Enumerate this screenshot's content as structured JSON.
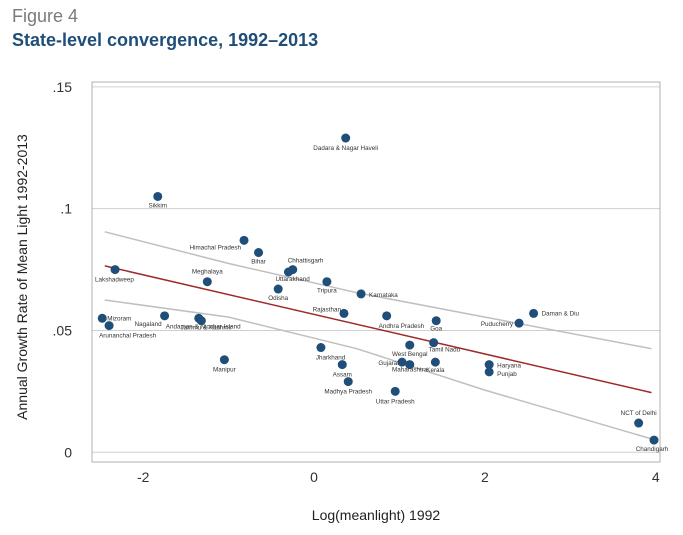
{
  "figure_label": "Figure 4",
  "title": "State-level convergence, 1992–2013",
  "chart_data": {
    "type": "scatter",
    "xlabel": "Log(meanlight) 1992",
    "ylabel": "Annual Growth Rate of Mean Light 1992-2013",
    "xlim": [
      -2.6,
      4.05
    ],
    "ylim": [
      -0.004,
      0.152
    ],
    "xticks": [
      {
        "v": -2,
        "label": "-2"
      },
      {
        "v": 0,
        "label": "0"
      },
      {
        "v": 2,
        "label": "2"
      },
      {
        "v": 4,
        "label": "4"
      }
    ],
    "yticks": [
      {
        "v": 0,
        "label": "0"
      },
      {
        "v": 0.05,
        "label": ".05"
      },
      {
        "v": 0.1,
        "label": ".1"
      },
      {
        "v": 0.15,
        "label": ".15"
      }
    ],
    "grid": true,
    "colors": {
      "points": "#1f4e79",
      "fit": "#9e2a2b",
      "ci": "#bfbfbf",
      "grid": "#d0d0d0",
      "frame": "#b0b0b0"
    },
    "fit_line": [
      {
        "x": -2.45,
        "y": 0.0765
      },
      {
        "x": 3.95,
        "y": 0.0245
      }
    ],
    "ci_upper": [
      {
        "x": -2.45,
        "y": 0.0905
      },
      {
        "x": -1.0,
        "y": 0.0775
      },
      {
        "x": 0.5,
        "y": 0.0655
      },
      {
        "x": 2.0,
        "y": 0.0555
      },
      {
        "x": 3.95,
        "y": 0.0425
      }
    ],
    "ci_lower": [
      {
        "x": -2.45,
        "y": 0.0625
      },
      {
        "x": -1.0,
        "y": 0.0555
      },
      {
        "x": 0.5,
        "y": 0.0425
      },
      {
        "x": 2.0,
        "y": 0.0255
      },
      {
        "x": 3.95,
        "y": 0.0055
      }
    ],
    "points": [
      {
        "name": "Dadara & Nagar Haveli",
        "x": 0.37,
        "y": 0.129
      },
      {
        "name": "Sikkim",
        "x": -1.83,
        "y": 0.105
      },
      {
        "name": "Himachal Pradesh",
        "x": -0.82,
        "y": 0.087
      },
      {
        "name": "Bihar",
        "x": -0.65,
        "y": 0.082
      },
      {
        "name": "Chhattisgarh",
        "x": -0.25,
        "y": 0.075
      },
      {
        "name": "Uttarakhand",
        "x": -0.3,
        "y": 0.074
      },
      {
        "name": "Lakshadweep",
        "x": -2.33,
        "y": 0.075
      },
      {
        "name": "Meghalaya",
        "x": -1.25,
        "y": 0.07
      },
      {
        "name": "Tripura",
        "x": 0.15,
        "y": 0.07
      },
      {
        "name": "Odisha",
        "x": -0.42,
        "y": 0.067
      },
      {
        "name": "Karnataka",
        "x": 0.55,
        "y": 0.065
      },
      {
        "name": "Rajasthan",
        "x": 0.35,
        "y": 0.057
      },
      {
        "name": "Daman & Diu",
        "x": 2.57,
        "y": 0.057
      },
      {
        "name": "Mizoram",
        "x": -2.48,
        "y": 0.055
      },
      {
        "name": "Nagaland",
        "x": -1.75,
        "y": 0.056
      },
      {
        "name": "Andaman & Nicobar Island",
        "x": -1.35,
        "y": 0.055
      },
      {
        "name": "Jammu & Kashmir",
        "x": -1.32,
        "y": 0.054
      },
      {
        "name": "Andhra Pradesh",
        "x": 0.85,
        "y": 0.056
      },
      {
        "name": "Goa",
        "x": 1.43,
        "y": 0.054
      },
      {
        "name": "Puducherry",
        "x": 2.4,
        "y": 0.053
      },
      {
        "name": "Arunanchal Pradesh",
        "x": -2.4,
        "y": 0.052
      },
      {
        "name": "Tamil Nadu",
        "x": 1.4,
        "y": 0.045
      },
      {
        "name": "Jharkhand",
        "x": 0.08,
        "y": 0.043
      },
      {
        "name": "West Bengal",
        "x": 1.12,
        "y": 0.044
      },
      {
        "name": "Manipur",
        "x": -1.05,
        "y": 0.038
      },
      {
        "name": "Gujarat",
        "x": 1.03,
        "y": 0.037
      },
      {
        "name": "Assam",
        "x": 0.33,
        "y": 0.036
      },
      {
        "name": "Maharashtra",
        "x": 1.12,
        "y": 0.036
      },
      {
        "name": "Haryana",
        "x": 2.05,
        "y": 0.036
      },
      {
        "name": "Kerala",
        "x": 1.42,
        "y": 0.037
      },
      {
        "name": "Punjab",
        "x": 2.05,
        "y": 0.033
      },
      {
        "name": "Madhya Pradesh",
        "x": 0.4,
        "y": 0.029
      },
      {
        "name": "Uttar Pradesh",
        "x": 0.95,
        "y": 0.025
      },
      {
        "name": "NCT of Delhi",
        "x": 3.8,
        "y": 0.012
      },
      {
        "name": "Chandigarh",
        "x": 3.98,
        "y": 0.005
      }
    ]
  }
}
